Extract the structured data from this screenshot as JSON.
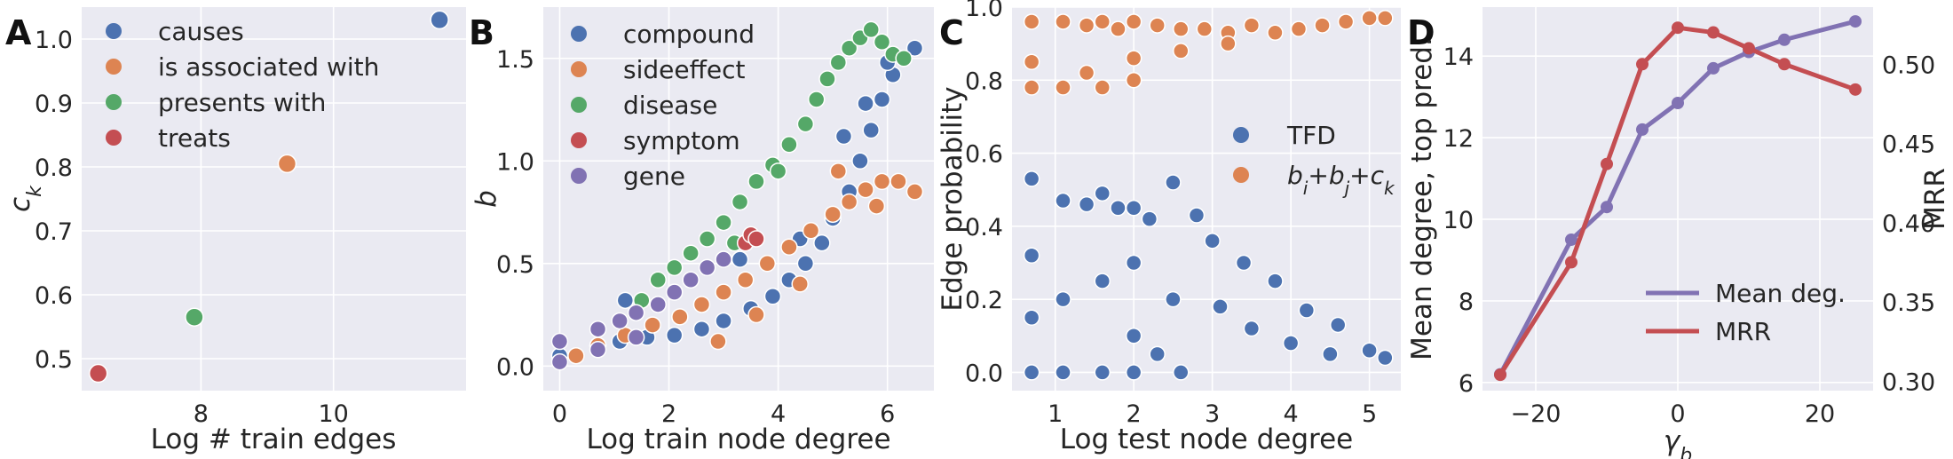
{
  "colors": {
    "blue": "#4c72b0",
    "orange": "#dd8452",
    "green": "#55a868",
    "red": "#c44e52",
    "purple": "#8172b3",
    "axes_bg": "#eaeaf2"
  },
  "chart_data": [
    {
      "panel": "A",
      "type": "scatter",
      "xlabel": "Log # train edges",
      "ylabel": "c_k",
      "xlim": [
        6.2,
        12.0
      ],
      "ylim": [
        0.45,
        1.05
      ],
      "xticks": [
        8,
        10
      ],
      "xtick_labels": [
        "8",
        "10"
      ],
      "yticks": [
        0.5,
        0.6,
        0.7,
        0.8,
        0.9,
        1.0
      ],
      "ytick_labels": [
        "0.5",
        "0.6",
        "0.7",
        "0.8",
        "0.9",
        "1.0"
      ],
      "legend_position": "top-left",
      "series": [
        {
          "name": "causes",
          "color": "blue",
          "x": [
            11.6
          ],
          "y": [
            1.03
          ]
        },
        {
          "name": "is associated with",
          "color": "orange",
          "x": [
            9.3
          ],
          "y": [
            0.805
          ]
        },
        {
          "name": "presents with",
          "color": "green",
          "x": [
            7.9
          ],
          "y": [
            0.565
          ]
        },
        {
          "name": "treats",
          "color": "red",
          "x": [
            6.45
          ],
          "y": [
            0.477
          ]
        }
      ]
    },
    {
      "panel": "B",
      "type": "scatter",
      "xlabel": "Log train node degree",
      "ylabel": "b",
      "xlim": [
        -0.3,
        6.85
      ],
      "ylim": [
        -0.12,
        1.75
      ],
      "xticks": [
        0,
        2,
        4,
        6
      ],
      "xtick_labels": [
        "0",
        "2",
        "4",
        "6"
      ],
      "yticks": [
        0.0,
        0.5,
        1.0,
        1.5
      ],
      "ytick_labels": [
        "0.0",
        "0.5",
        "1.0",
        "1.5"
      ],
      "legend_position": "top-left",
      "series": [
        {
          "name": "compound",
          "color": "blue",
          "x": [
            0,
            0.7,
            1.1,
            1.6,
            2.1,
            2.6,
            3.0,
            3.5,
            3.9,
            4.2,
            4.5,
            4.8,
            5.0,
            5.3,
            5.5,
            5.7,
            5.9,
            6.1,
            6.3,
            6.5,
            1.2,
            2.4,
            3.3,
            4.4,
            5.2,
            5.6,
            6.0
          ],
          "y": [
            0.05,
            0.1,
            0.12,
            0.14,
            0.15,
            0.18,
            0.22,
            0.28,
            0.34,
            0.42,
            0.5,
            0.6,
            0.72,
            0.85,
            1.0,
            1.15,
            1.3,
            1.42,
            1.5,
            1.55,
            0.32,
            0.42,
            0.52,
            0.62,
            1.12,
            1.28,
            1.48
          ]
        },
        {
          "name": "sideeffect",
          "color": "orange",
          "x": [
            0.3,
            0.7,
            1.2,
            1.7,
            2.2,
            2.6,
            3.0,
            3.4,
            3.8,
            4.2,
            4.6,
            5.0,
            5.3,
            5.6,
            5.9,
            6.2,
            6.5,
            2.9,
            3.6,
            4.4,
            5.1,
            5.8
          ],
          "y": [
            0.05,
            0.1,
            0.15,
            0.2,
            0.24,
            0.3,
            0.36,
            0.42,
            0.5,
            0.58,
            0.66,
            0.74,
            0.8,
            0.86,
            0.9,
            0.9,
            0.85,
            0.12,
            0.25,
            0.4,
            0.95,
            0.78
          ]
        },
        {
          "name": "disease",
          "color": "green",
          "x": [
            1.8,
            2.1,
            2.4,
            2.7,
            3.0,
            3.3,
            3.6,
            3.9,
            4.2,
            4.5,
            4.7,
            4.9,
            5.1,
            5.3,
            5.5,
            5.7,
            5.9,
            6.1,
            6.3,
            1.5,
            3.2,
            4.0
          ],
          "y": [
            0.42,
            0.48,
            0.55,
            0.62,
            0.7,
            0.8,
            0.9,
            0.98,
            1.08,
            1.18,
            1.3,
            1.4,
            1.48,
            1.55,
            1.6,
            1.64,
            1.58,
            1.52,
            1.5,
            0.32,
            0.6,
            0.95
          ]
        },
        {
          "name": "symptom",
          "color": "red",
          "x": [
            3.4,
            3.5,
            3.6
          ],
          "y": [
            0.6,
            0.64,
            0.62
          ]
        },
        {
          "name": "gene",
          "color": "purple",
          "x": [
            0,
            0.7,
            1.1,
            1.4,
            1.8,
            2.1,
            2.4,
            2.7,
            3.0,
            0,
            0.7,
            1.4
          ],
          "y": [
            0.12,
            0.18,
            0.22,
            0.26,
            0.3,
            0.36,
            0.42,
            0.48,
            0.52,
            0.02,
            0.08,
            0.14
          ]
        }
      ]
    },
    {
      "panel": "C",
      "type": "scatter",
      "xlabel": "Log test node degree",
      "ylabel": "Edge probability",
      "xlim": [
        0.45,
        5.4
      ],
      "ylim": [
        -0.05,
        1.0
      ],
      "xticks": [
        1,
        2,
        3,
        4,
        5
      ],
      "xtick_labels": [
        "1",
        "2",
        "3",
        "4",
        "5"
      ],
      "yticks": [
        0.0,
        0.2,
        0.4,
        0.6,
        0.8,
        1.0
      ],
      "ytick_labels": [
        "0.0",
        "0.2",
        "0.4",
        "0.6",
        "0.8",
        "1.0"
      ],
      "legend_position": "center-right",
      "series": [
        {
          "name": "TFD",
          "color": "blue",
          "x": [
            0.7,
            0.7,
            0.7,
            1.1,
            1.1,
            1.4,
            1.6,
            1.6,
            1.8,
            2.0,
            2.0,
            2.2,
            2.5,
            2.8,
            3.0,
            3.4,
            3.8,
            4.2,
            4.6,
            5.0,
            5.2,
            0.7,
            1.1,
            1.6,
            2.0,
            2.5,
            3.1,
            3.5,
            4.0,
            4.5,
            2.0,
            2.3,
            2.6
          ],
          "y": [
            0.53,
            0.32,
            0.0,
            0.47,
            0.0,
            0.46,
            0.49,
            0.0,
            0.45,
            0.45,
            0.0,
            0.42,
            0.52,
            0.43,
            0.36,
            0.3,
            0.25,
            0.17,
            0.13,
            0.06,
            0.04,
            0.15,
            0.2,
            0.25,
            0.3,
            0.2,
            0.18,
            0.12,
            0.08,
            0.05,
            0.1,
            0.05,
            0.0
          ]
        },
        {
          "name": "b_i+b_j+c_k",
          "color": "orange",
          "x": [
            0.7,
            0.7,
            0.7,
            1.1,
            1.1,
            1.4,
            1.6,
            1.6,
            1.8,
            2.0,
            2.0,
            2.3,
            2.6,
            2.9,
            3.2,
            3.5,
            3.8,
            4.1,
            4.4,
            4.7,
            5.0,
            5.2,
            1.4,
            2.0,
            2.6,
            3.2
          ],
          "y": [
            0.96,
            0.85,
            0.78,
            0.96,
            0.78,
            0.95,
            0.96,
            0.78,
            0.94,
            0.96,
            0.8,
            0.95,
            0.94,
            0.94,
            0.93,
            0.95,
            0.93,
            0.94,
            0.95,
            0.96,
            0.97,
            0.97,
            0.82,
            0.86,
            0.88,
            0.9
          ]
        }
      ]
    },
    {
      "panel": "D",
      "type": "line",
      "xlabel": "γ_b",
      "ylabel": "Mean degree, top pred.",
      "ylabel_right": "MRR",
      "xlim": [
        -27.5,
        27.5
      ],
      "ylim": [
        5.8,
        15.2
      ],
      "ylim_right": [
        0.294,
        0.536
      ],
      "xticks": [
        -20,
        0,
        20
      ],
      "xtick_labels": [
        "−20",
        "0",
        "20"
      ],
      "yticks": [
        6,
        8,
        10,
        12,
        14
      ],
      "ytick_labels": [
        "6",
        "8",
        "10",
        "12",
        "14"
      ],
      "yticks_right": [
        0.3,
        0.35,
        0.4,
        0.45,
        0.5
      ],
      "ytick_labels_right": [
        "0.30",
        "0.35",
        "0.40",
        "0.45",
        "0.50"
      ],
      "legend_position": "bottom-right",
      "x": [
        -25,
        -15,
        -10,
        -5,
        0,
        5,
        10,
        15,
        25
      ],
      "series": [
        {
          "name": "Mean deg.",
          "color": "purple",
          "axis": "left",
          "values": [
            6.2,
            9.5,
            10.3,
            12.2,
            12.85,
            13.7,
            14.1,
            14.4,
            14.85
          ]
        },
        {
          "name": "MRR",
          "color": "red",
          "axis": "right",
          "values": [
            0.304,
            0.375,
            0.437,
            0.5,
            0.523,
            0.52,
            0.51,
            0.5,
            0.484
          ]
        }
      ]
    }
  ],
  "panels": {
    "A": {
      "letter": "A",
      "ylabel_base": "c",
      "ylabel_sub": "k"
    },
    "B": {
      "letter": "B",
      "ylabel_text": "b"
    },
    "C": {
      "letter": "C",
      "legend_formula": {
        "b": "b",
        "i": "i",
        "plus": "+",
        "j": "j",
        "c": "c",
        "k": "k"
      }
    },
    "D": {
      "letter": "D",
      "xlabel_base": "γ",
      "xlabel_sub": "b"
    }
  }
}
